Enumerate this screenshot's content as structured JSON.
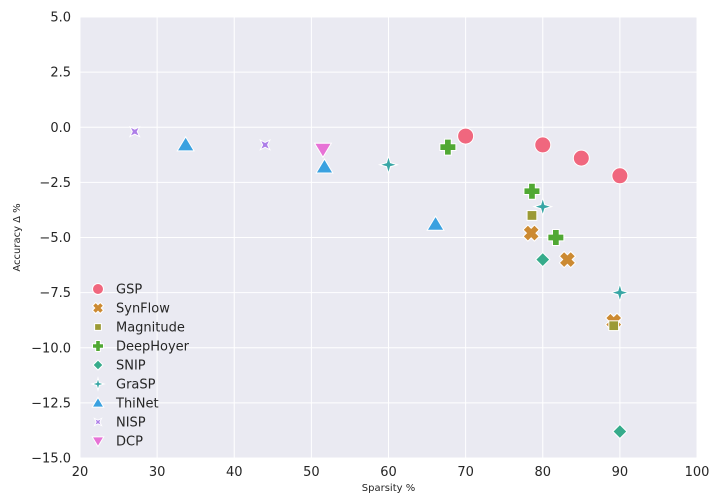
{
  "chart_data": {
    "type": "scatter",
    "title": "",
    "xlabel": "Sparsity %",
    "ylabel": "Accuracy Δ %",
    "xlim": [
      20,
      100
    ],
    "ylim": [
      -15,
      5
    ],
    "xticks": [
      20,
      30,
      40,
      50,
      60,
      70,
      80,
      90,
      100
    ],
    "yticks": [
      5.0,
      2.5,
      0.0,
      -2.5,
      -5.0,
      -7.5,
      -10.0,
      -12.5,
      -15.0
    ],
    "xtick_labels": [
      "20",
      "30",
      "40",
      "50",
      "60",
      "70",
      "80",
      "90",
      "100"
    ],
    "ytick_labels": [
      "5.0",
      "2.5",
      "0.0",
      "−2.5",
      "−5.0",
      "−7.5",
      "−10.0",
      "−12.5",
      "−15.0"
    ],
    "grid": true,
    "legend_position": "lower-left",
    "series": [
      {
        "name": "GSP",
        "marker": "circle",
        "color": "#f0677e",
        "points": [
          [
            70,
            -0.4
          ],
          [
            80,
            -0.8
          ],
          [
            85,
            -1.4
          ],
          [
            90,
            -2.2
          ]
        ]
      },
      {
        "name": "SynFlow",
        "marker": "x",
        "color": "#cc8a32",
        "points": [
          [
            78.5,
            -4.8
          ],
          [
            83.2,
            -6.0
          ],
          [
            89.2,
            -8.8
          ]
        ]
      },
      {
        "name": "Magnitude",
        "marker": "square",
        "color": "#9b9a35",
        "points": [
          [
            78.6,
            -4.0
          ],
          [
            89.2,
            -9.0
          ]
        ]
      },
      {
        "name": "DeepHoyer",
        "marker": "plus",
        "color": "#50a833",
        "points": [
          [
            67.7,
            -0.9
          ],
          [
            78.6,
            -2.9
          ],
          [
            81.7,
            -5.0
          ]
        ]
      },
      {
        "name": "SNIP",
        "marker": "diamond",
        "color": "#36ab8b",
        "points": [
          [
            80,
            -6.0
          ],
          [
            90,
            -13.8
          ]
        ]
      },
      {
        "name": "GraSP",
        "marker": "star",
        "color": "#38a6a5",
        "points": [
          [
            60,
            -1.7
          ],
          [
            80,
            -3.6
          ],
          [
            90,
            -7.5
          ]
        ]
      },
      {
        "name": "ThiNet",
        "marker": "triangle-up",
        "color": "#3aa1e0",
        "points": [
          [
            33.7,
            -0.8
          ],
          [
            51.7,
            -1.8
          ],
          [
            66.1,
            -4.4
          ]
        ]
      },
      {
        "name": "NISP",
        "marker": "star4",
        "color": "#ae7fe8",
        "points": [
          [
            27.1,
            -0.2
          ],
          [
            44,
            -0.8
          ]
        ]
      },
      {
        "name": "DCP",
        "marker": "triangle-down",
        "color": "#e772d6",
        "points": [
          [
            51.5,
            -1.0
          ]
        ]
      }
    ]
  }
}
